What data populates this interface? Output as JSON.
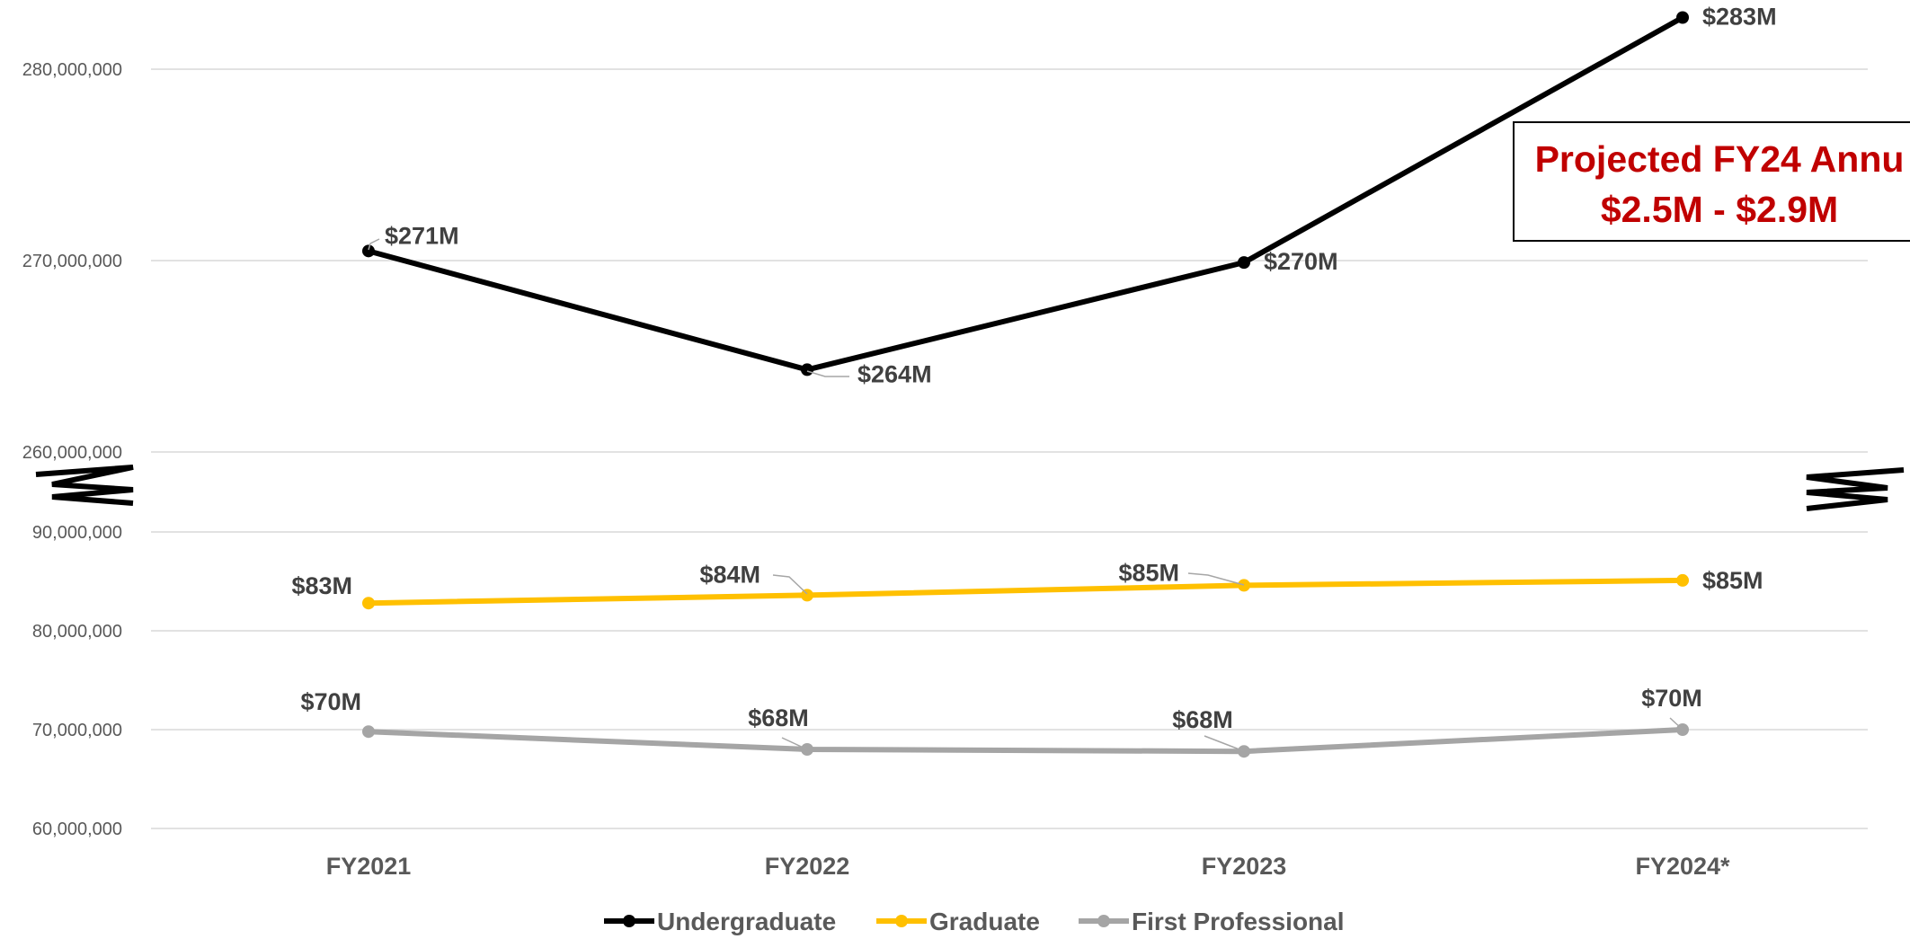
{
  "chart_data": {
    "type": "line",
    "categories": [
      "FY2021",
      "FY2022",
      "FY2023",
      "FY2024*"
    ],
    "series": [
      {
        "name": "Undergraduate",
        "color": "#000000",
        "values": [
          270500000,
          264300000,
          269900000,
          282700000
        ],
        "labels": [
          "$271M",
          "$264M",
          "$270M",
          "$283M"
        ]
      },
      {
        "name": "Graduate",
        "color": "#FFC000",
        "values": [
          82800000,
          83600000,
          84600000,
          85100000
        ],
        "labels": [
          "$83M",
          "$84M",
          "$85M",
          "$85M"
        ]
      },
      {
        "name": "First Professional",
        "color": "#A5A5A5",
        "values": [
          69800000,
          68000000,
          67800000,
          70000000
        ],
        "labels": [
          "$70M",
          "$68M",
          "$68M",
          "$70M"
        ]
      }
    ],
    "axis_break": true,
    "upper_axis": {
      "ylim": [
        260000000,
        280000000
      ],
      "ticks": [
        "280,000,000",
        "270,000,000",
        "260,000,000"
      ]
    },
    "lower_axis": {
      "ylim": [
        60000000,
        90000000
      ],
      "ticks": [
        "90,000,000",
        "80,000,000",
        "70,000,000",
        "60,000,000"
      ]
    },
    "grid": true,
    "legend_position": "bottom",
    "annotation": {
      "line1": "Projected FY24 Annu",
      "line2": "$2.5M - $2.9M"
    }
  }
}
